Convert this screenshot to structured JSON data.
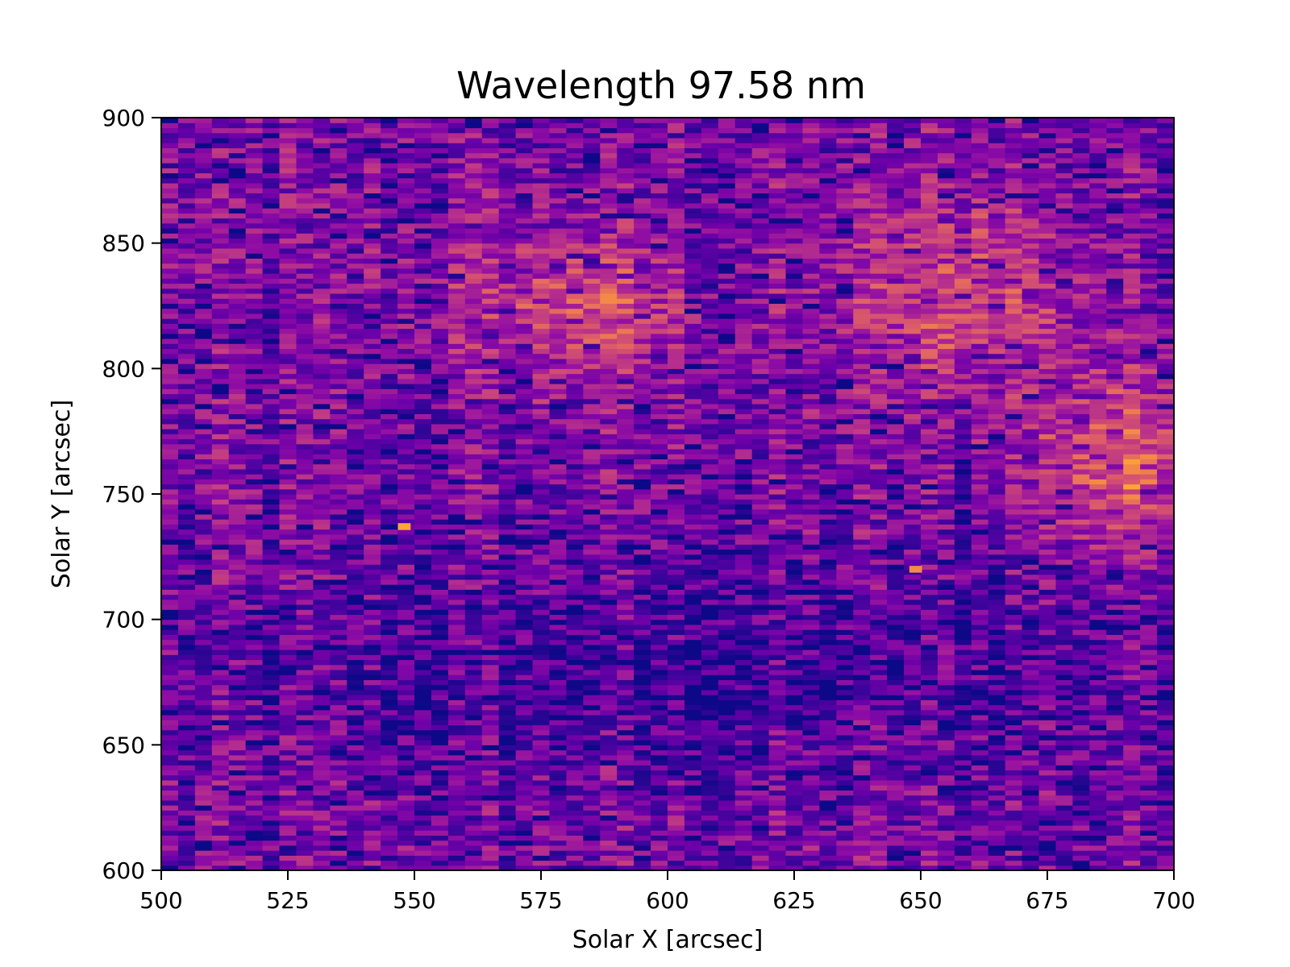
{
  "chart_data": {
    "type": "heatmap",
    "title": "Wavelength 97.58 nm",
    "xlabel": "Solar X [arcsec]",
    "ylabel": "Solar Y [arcsec]",
    "xlim": [
      500,
      700
    ],
    "ylim": [
      600,
      900
    ],
    "xticks": [
      "500",
      "525",
      "550",
      "575",
      "600",
      "625",
      "650",
      "675",
      "700"
    ],
    "yticks": [
      "600",
      "650",
      "700",
      "750",
      "800",
      "850",
      "900"
    ],
    "colormap": "plasma (truncated: dark navy to orange)",
    "colors": [
      "#0d0887",
      "#3a049a",
      "#6a00a8",
      "#900da4",
      "#b12a90",
      "#cc4778",
      "#e16462",
      "#f2844b",
      "#fca636"
    ],
    "grid": false,
    "intensity_features": [
      {
        "region": "bright patch",
        "x_range": [
          562,
          600
        ],
        "y_range": [
          800,
          850
        ],
        "relative_intensity": 0.75
      },
      {
        "region": "bright patch",
        "x_range": [
          640,
          675
        ],
        "y_range": [
          790,
          870
        ],
        "relative_intensity": 0.7
      },
      {
        "region": "brightest area",
        "x_range": [
          678,
          700
        ],
        "y_range": [
          730,
          800
        ],
        "relative_intensity": 0.85
      },
      {
        "region": "hot pixel",
        "x": 548,
        "y": 737,
        "relative_intensity": 1.0
      },
      {
        "region": "hot pixel",
        "x": 649,
        "y": 720,
        "relative_intensity": 0.8
      },
      {
        "region": "dark lane",
        "x_range": [
          500,
          700
        ],
        "y_range": [
          640,
          720
        ],
        "relative_intensity": 0.15
      }
    ]
  }
}
